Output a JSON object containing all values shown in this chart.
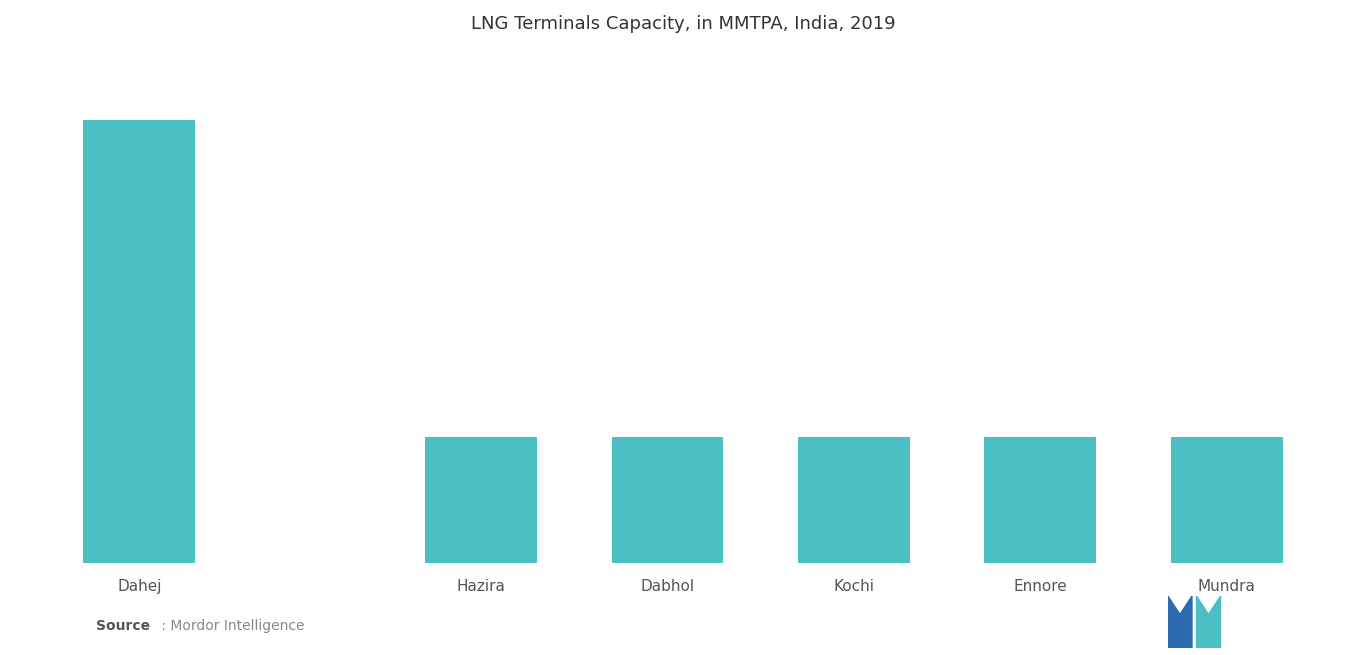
{
  "title": "LNG Terminals Capacity, in MMTPA, India, 2019",
  "categories": [
    "Dahej",
    "Hazira",
    "Dabhol",
    "Kochi",
    "Ennore",
    "Mundra"
  ],
  "values": [
    17.5,
    5.0,
    5.0,
    5.0,
    5.0,
    5.0
  ],
  "bar_color": "#4BBFC4",
  "background_color": "#FFFFFF",
  "title_fontsize": 13,
  "label_fontsize": 11,
  "source_bold": "Source",
  "source_detail": " : Mordor Intelligence",
  "ylim": [
    0,
    20
  ],
  "bar_width": 0.72,
  "logo_left_color": "#2B6CB0",
  "logo_right_color": "#4BBFC4"
}
